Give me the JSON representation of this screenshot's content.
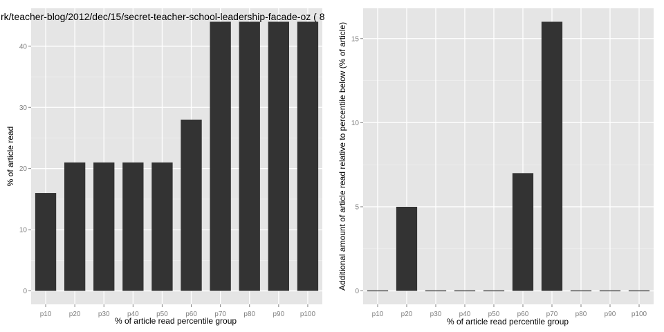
{
  "chart_data": [
    {
      "type": "bar",
      "title": "rk/teacher-blog/2012/dec/15/secret-teacher-school-leadership-facade-oz ( 8",
      "xlabel": "% of article read percentile group",
      "ylabel": "% of article read",
      "categories": [
        "p10",
        "p20",
        "p30",
        "p40",
        "p50",
        "p60",
        "p70",
        "p80",
        "p90",
        "p100"
      ],
      "values": [
        16,
        21,
        21,
        21,
        21,
        28,
        44,
        44,
        44,
        44
      ],
      "ylim": [
        -2.2,
        46.2
      ],
      "yticks": [
        0,
        10,
        20,
        30,
        40
      ],
      "grid": true,
      "bar_color": "#333333",
      "panel_color": "#e5e5e5"
    },
    {
      "type": "bar",
      "title": "",
      "xlabel": "% of article read percentile group",
      "ylabel": "Additional amount of article read relative to percentile below (% of article)",
      "categories": [
        "p10",
        "p20",
        "p30",
        "p40",
        "p50",
        "p60",
        "p70",
        "p80",
        "p90",
        "p100"
      ],
      "values": [
        0,
        5,
        0,
        0,
        0,
        7,
        16,
        0,
        0,
        0
      ],
      "ylim": [
        -0.8,
        16.8
      ],
      "yticks": [
        0,
        5,
        10,
        15
      ],
      "grid": true,
      "bar_color": "#333333",
      "panel_color": "#e5e5e5"
    }
  ]
}
